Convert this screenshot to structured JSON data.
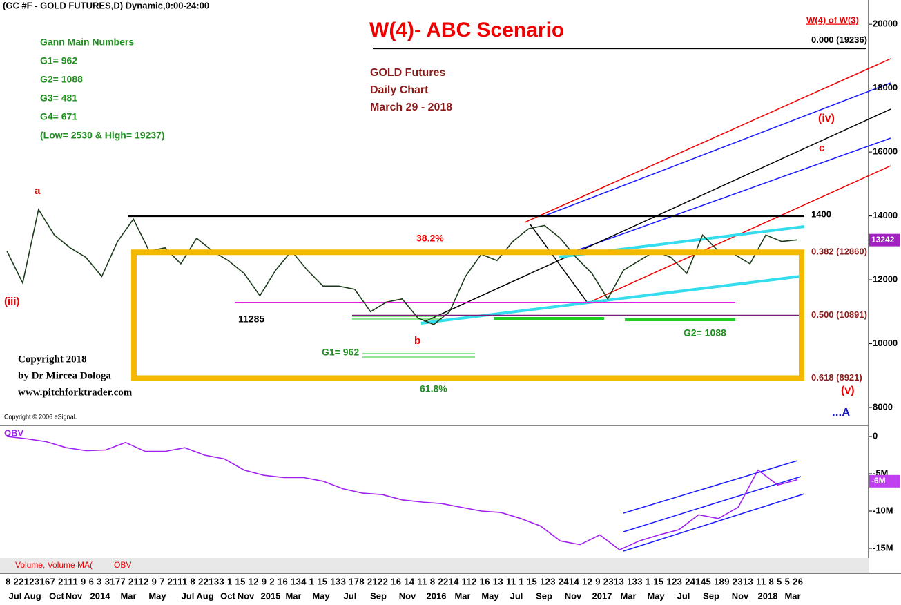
{
  "header": "(GC #F - GOLD FUTURES,D) Dynamic,0:00-24:00",
  "chart_data": [
    {
      "type": "line",
      "title": "W(4)- ABC Scenario",
      "subtitle": [
        "GOLD Futures",
        "Daily Chart",
        "March 29 - 2018"
      ],
      "gann": [
        "Gann Main Numbers",
        "G1= 962",
        "G2= 1088",
        "G3= 481",
        "G4= 671",
        "(Low= 2530 & High= 19237)"
      ],
      "copyright": [
        "Copyright 2018",
        "by Dr Mircea Dologa",
        "www.pitchforktrader.com"
      ],
      "source": "Copyright © 2006 eSignal.",
      "target": "W(4) of W(3)",
      "levels": [
        {
          "value": 19236,
          "label": "0.000 (19236)",
          "color": "#000000"
        },
        {
          "value": 12860,
          "label": "0.382 (12860)",
          "color": "#f5b800"
        },
        {
          "value": 10891,
          "label": "0.500 (10891)",
          "color": "#7a1a7a"
        },
        {
          "value": 8921,
          "label": "0.618 (8921)",
          "color": "#f5b800"
        }
      ],
      "resistance": 14000,
      "annotations": [
        "a",
        "b",
        "c",
        "(iii)",
        "(iv)",
        "(v)",
        "...A",
        "11285",
        "38.2%",
        "61.8%",
        "G1= 962",
        "G2= 1088",
        "1400"
      ],
      "color": "#1b3b1b",
      "values": [
        12900,
        11900,
        14200,
        13400,
        13000,
        12700,
        12100,
        13200,
        13900,
        12900,
        13000,
        12500,
        13300,
        12900,
        12600,
        12200,
        11500,
        12300,
        12900,
        12300,
        11800,
        11800,
        11700,
        11000,
        11300,
        11400,
        10800,
        10600,
        11000,
        12100,
        12800,
        12600,
        13200,
        13600,
        13700,
        13300,
        12700,
        12200,
        11400,
        12300,
        12600,
        12900,
        12700,
        12200,
        13400,
        12900,
        12800,
        12500,
        13400,
        13200,
        13250
      ],
      "last_value": 13242,
      "ylim": [
        7460,
        20760
      ],
      "yticks": [
        8000,
        10000,
        12000,
        14000,
        16000,
        18000,
        20000
      ]
    },
    {
      "type": "line",
      "title": "OBV",
      "color": "#a020f0",
      "values": [
        0,
        -300000,
        -700000,
        -1500000,
        -1900000,
        -1800000,
        -800000,
        -2000000,
        -2000000,
        -1500000,
        -2500000,
        -3000000,
        -4500000,
        -5200000,
        -5500000,
        -5500000,
        -6000000,
        -7000000,
        -7600000,
        -7800000,
        -8500000,
        -8800000,
        -9000000,
        -9500000,
        -10000000,
        -10200000,
        -11000000,
        -12000000,
        -14000000,
        -14500000,
        -13200000,
        -15200000,
        -14000000,
        -13200000,
        -12500000,
        -10500000,
        -11000000,
        -9500000,
        -4500000,
        -6500000,
        -5800000
      ],
      "last_value": {
        "value": -6000000,
        "label": "-6M"
      },
      "ylim": [
        -16300000,
        1300000
      ],
      "yticks": [
        0,
        {
          "value": -5000000,
          "label": "-5M"
        },
        {
          "value": -10000000,
          "label": "-10M"
        },
        {
          "value": -15000000,
          "label": "-15M"
        }
      ]
    }
  ],
  "tabs": [
    "Volume, Volume MA(",
    "OBV"
  ],
  "time_axis": {
    "days": "8 22123167 2111 9  6  3  3177 2112 9  7 2111 8 22133  1 15 12 9  2 16 134  1 15 133 178 2122 16 14 11 8 2214 112 16 13 11 1 15 123  2414 12 9 2313 133  1 15 123 24145 189 2313 11 8  5  5 26",
    "months": [
      "Jul",
      "Aug",
      "Oct",
      "Nov",
      "2014",
      "Mar",
      "May",
      "Jul",
      "Aug",
      "Oct",
      "Nov",
      "2015",
      "Mar",
      "May",
      "Jul",
      "Sep",
      "Nov",
      "2016",
      "Mar",
      "May",
      "Jul",
      "Sep",
      "Nov",
      "2017",
      "Mar",
      "May",
      "Jul",
      "Sep",
      "Nov",
      "2018",
      "Mar"
    ]
  }
}
